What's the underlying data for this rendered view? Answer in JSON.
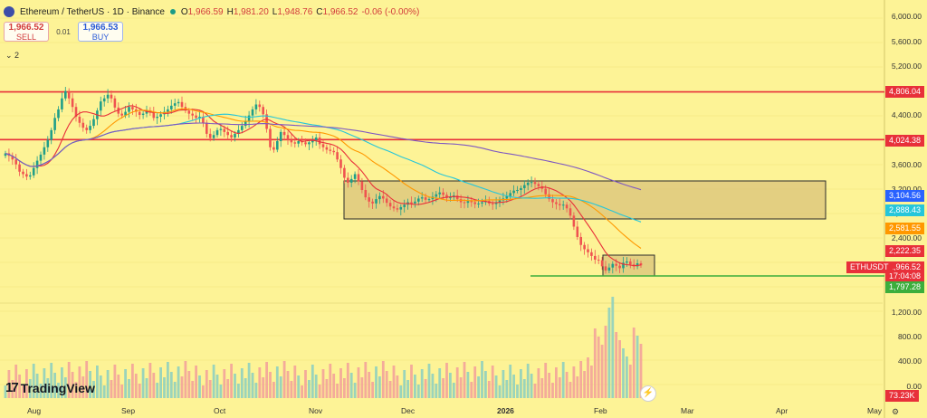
{
  "header": {
    "symbol": "Ethereum / TetherUS · 1D · Binance",
    "ohlc": [
      {
        "k": "O",
        "v": "1,966.59"
      },
      {
        "k": "H",
        "v": "1,981.20"
      },
      {
        "k": "L",
        "v": "1,948.76"
      },
      {
        "k": "C",
        "v": "1,966.52"
      }
    ],
    "change": "-0.06 (-0.00%)"
  },
  "trade": {
    "sell_price": "1,966.52",
    "sell_label": "SELL",
    "spread": "0.01",
    "buy_price": "1,966.53",
    "buy_label": "BUY"
  },
  "indicators_toggle": "⌄ 2",
  "logo_text": "TradingView",
  "price_axis": [
    "6,000.00",
    "5,600.00",
    "5,200.00",
    "4,400.00",
    "3,600.00",
    "3,200.00",
    "2,800.00",
    "2,400.00",
    "1,200.00",
    "800.00",
    "400.00",
    "0.00"
  ],
  "price_labels": [
    {
      "name": "level-4806",
      "text": "4,806.04",
      "color": "#e8303a"
    },
    {
      "name": "level-4024",
      "text": "4,024.38",
      "color": "#e8303a"
    },
    {
      "name": "ma-3104",
      "text": "3,104.56",
      "color": "#2962ff"
    },
    {
      "name": "ma-2888",
      "text": "2,888.43",
      "color": "#26c6da"
    },
    {
      "name": "ma-2581",
      "text": "2,581.55",
      "color": "#ff9800"
    },
    {
      "name": "ma-2222",
      "text": "2,222.35",
      "color": "#e8303a"
    },
    {
      "name": "last-price",
      "text": "1,966.52",
      "color": "#e8303a"
    },
    {
      "name": "countdown",
      "text": "17:04:08",
      "color": "#e8303a"
    },
    {
      "name": "support-1797",
      "text": "1,797.28",
      "color": "#3cae3c"
    },
    {
      "name": "volume",
      "text": "73.23K",
      "color": "#e8303a"
    }
  ],
  "symbol_tag": "ETHUSDT",
  "time_axis": [
    {
      "t": "Aug",
      "bold": false
    },
    {
      "t": "Sep",
      "bold": false
    },
    {
      "t": "Oct",
      "bold": false
    },
    {
      "t": "Nov",
      "bold": false
    },
    {
      "t": "Dec",
      "bold": false
    },
    {
      "t": "2026",
      "bold": true
    },
    {
      "t": "Feb",
      "bold": false
    },
    {
      "t": "Mar",
      "bold": false
    },
    {
      "t": "Apr",
      "bold": false
    },
    {
      "t": "May",
      "bold": false
    }
  ],
  "colors": {
    "up": "#1f9e89",
    "down": "#ef5350",
    "level": "#e8303a",
    "support": "#3cae3c"
  },
  "chart_data": {
    "type": "candlestick",
    "closes": [
      3800,
      3760,
      3700,
      3620,
      3500,
      3460,
      3420,
      3440,
      3560,
      3680,
      3780,
      3900,
      4020,
      4180,
      4380,
      4520,
      4700,
      4820,
      4700,
      4560,
      4400,
      4300,
      4220,
      4180,
      4250,
      4360,
      4500,
      4650,
      4700,
      4760,
      4700,
      4550,
      4450,
      4420,
      4480,
      4560,
      4520,
      4480,
      4430,
      4450,
      4500,
      4470,
      4380,
      4400,
      4440,
      4480,
      4520,
      4580,
      4620,
      4640,
      4560,
      4500,
      4450,
      4420,
      4380,
      4400,
      4300,
      4120,
      4050,
      4100,
      4180,
      4200,
      4150,
      4100,
      4060,
      4120,
      4180,
      4250,
      4320,
      4420,
      4520,
      4600,
      4560,
      4440,
      4200,
      3900,
      3860,
      4000,
      4150,
      4100,
      4020,
      3980,
      3960,
      4000,
      3980,
      3950,
      3980,
      4010,
      4060,
      3950,
      3900,
      3860,
      3840,
      3820,
      3700,
      3560,
      3400,
      3320,
      3380,
      3460,
      3340,
      3200,
      3080,
      3010,
      2980,
      3050,
      3100,
      3060,
      2990,
      2930,
      2900,
      2880,
      2920,
      2960,
      3000,
      2980,
      3010,
      3060,
      3080,
      3040,
      3050,
      3090,
      3130,
      3160,
      3120,
      3070,
      3080,
      3110,
      3050,
      3000,
      2990,
      3020,
      3000,
      2970,
      2980,
      3000,
      3020,
      2980,
      2970,
      3000,
      3030,
      3060,
      3100,
      3150,
      3190,
      3200,
      3230,
      3280,
      3320,
      3330,
      3300,
      3260,
      3220,
      3130,
      3050,
      3000,
      2970,
      2950,
      2960,
      2900,
      2780,
      2600,
      2430,
      2300,
      2230,
      2180,
      2120,
      2060,
      2050,
      1950,
      1880,
      1930,
      1990,
      1960,
      1920,
      2010,
      2030,
      1980,
      1950,
      2000,
      1966
    ],
    "price_levels": [
      4806.04,
      4024.38
    ],
    "support_level": 1797.28,
    "moving_averages": [
      3104.56,
      2888.43,
      2581.55,
      2222.35
    ],
    "last_price": 1966.52
  }
}
